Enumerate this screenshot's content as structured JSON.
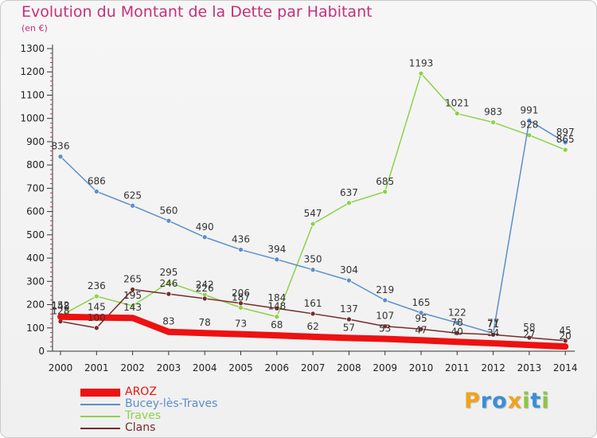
{
  "title": "Evolution du Montant de la Dette par Habitant",
  "subtitle": "(en €)",
  "logo": {
    "letters": [
      "P",
      "r",
      "o",
      "x",
      "i",
      "t",
      "i"
    ],
    "colors": [
      "#f2a31a",
      "#3c8ed6",
      "#3c8ed6",
      "#f2a31a",
      "#8cc63f",
      "#3c8ed6",
      "#8cc63f"
    ]
  },
  "chart_data": {
    "type": "line",
    "x": [
      "2000",
      "2001",
      "2002",
      "2003",
      "2004",
      "2005",
      "2006",
      "2007",
      "2008",
      "2009",
      "2010",
      "2011",
      "2012",
      "2013",
      "2014"
    ],
    "ylim": [
      0,
      1300
    ],
    "yticks": [
      "0",
      "100",
      "200",
      "300",
      "400",
      "500",
      "600",
      "700",
      "800",
      "900",
      "1000",
      "1100",
      "1200",
      "1300"
    ],
    "grid": false,
    "legend_position": "bottom-left",
    "series": [
      {
        "name": "Traves",
        "color": "#8cd24a",
        "width": 1.5,
        "values": [
          152,
          236,
          195,
          295,
          242,
          187,
          148,
          547,
          637,
          685,
          1193,
          1021,
          983,
          928,
          865
        ],
        "labels": [
          "152",
          "236",
          "195",
          "295",
          "242",
          "187",
          "148",
          "547",
          "637",
          "685",
          "1193",
          "1021",
          "983",
          "928",
          "865"
        ]
      },
      {
        "name": "Bucey-lès-Traves",
        "color": "#5b8fc9",
        "width": 1.5,
        "values": [
          836,
          686,
          625,
          560,
          490,
          436,
          394,
          350,
          304,
          219,
          165,
          122,
          77,
          991,
          897
        ],
        "labels": [
          "836",
          "686",
          "625",
          "560",
          "490",
          "436",
          "394",
          "350",
          "304",
          "219",
          "165",
          "122",
          "77",
          "991",
          "897"
        ]
      },
      {
        "name": "Clans",
        "color": "#7a2a2a",
        "width": 1.5,
        "values": [
          128,
          100,
          265,
          246,
          226,
          206,
          184,
          161,
          137,
          107,
          95,
          78,
          71,
          58,
          45
        ],
        "labels": [
          "128",
          "100",
          "265",
          "246",
          "226",
          "206",
          "184",
          "161",
          "137",
          "107",
          "95",
          "78",
          "71",
          "58",
          "45"
        ]
      },
      {
        "name": "AROZ",
        "color": "#ee1111",
        "width": 8,
        "values": [
          148,
          145,
          143,
          83,
          78,
          73,
          68,
          62,
          57,
          53,
          47,
          40,
          34,
          27,
          20
        ],
        "labels": [
          "148",
          "145",
          "143",
          "83",
          "78",
          "73",
          "68",
          "62",
          "57",
          "53",
          "47",
          "40",
          "34",
          "27",
          "20"
        ]
      }
    ]
  },
  "legend": [
    {
      "name": "AROZ",
      "color": "#ee1111",
      "thickness": 10
    },
    {
      "name": "Bucey-lès-Traves",
      "color": "#5b8fc9",
      "thickness": 2
    },
    {
      "name": "Traves",
      "color": "#8cd24a",
      "thickness": 2
    },
    {
      "name": "Clans",
      "color": "#7a2a2a",
      "thickness": 2
    }
  ]
}
